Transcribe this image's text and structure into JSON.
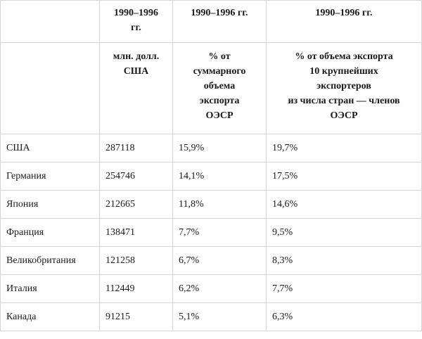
{
  "headers": {
    "row1": [
      "",
      "1990–1996\nгг.",
      "1990–1996 гг.",
      "1990–1996 гг."
    ],
    "row2": [
      "",
      "млн. долл.\nСША",
      "% от\nсуммарного\nобъема\nэкспорта\nОЭСР",
      "% от объема экспорта\n10 крупнейших\nэкспортеров\nиз числа стран — членов\nОЭСР"
    ]
  },
  "rows": [
    {
      "country": "США",
      "value": "287118",
      "share_oecd": "15,9%",
      "share_top10": "19,7%"
    },
    {
      "country": "Германия",
      "value": "254746",
      "share_oecd": "14,1%",
      "share_top10": "17,5%"
    },
    {
      "country": "Япония",
      "value": "212665",
      "share_oecd": "11,8%",
      "share_top10": "14,6%"
    },
    {
      "country": "Франция",
      "value": "138471",
      "share_oecd": "7,7%",
      "share_top10": "9,5%"
    },
    {
      "country": "Великобритания",
      "value": "121258",
      "share_oecd": "6,7%",
      "share_top10": "8,3%"
    },
    {
      "country": "Италия",
      "value": "112449",
      "share_oecd": "6,2%",
      "share_top10": "7,7%"
    },
    {
      "country": "Канада",
      "value": "91215",
      "share_oecd": "5,1%",
      "share_top10": "6,3%"
    }
  ]
}
